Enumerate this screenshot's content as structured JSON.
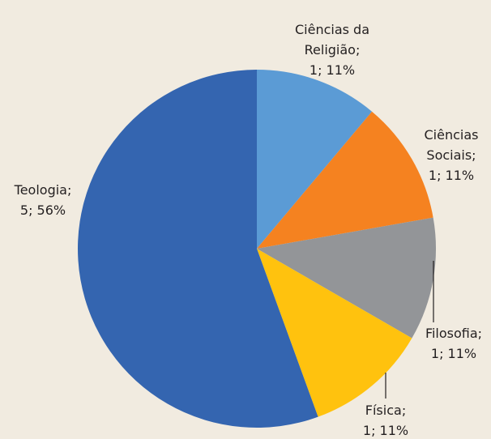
{
  "chart_data": {
    "type": "pie",
    "categories": [
      "Ciências da Religião;",
      "Ciências Sociais;",
      "Filosofia;",
      "Física;",
      "Teologia;"
    ],
    "values": [
      1,
      1,
      1,
      1,
      5
    ],
    "value_labels": [
      "1; 11%",
      "1; 11%",
      "1; 11%",
      "1; 11%",
      "5; 56%"
    ],
    "colors": [
      "#5b9bd5",
      "#f58220",
      "#939598",
      "#ffc20e",
      "#3465b0"
    ]
  }
}
